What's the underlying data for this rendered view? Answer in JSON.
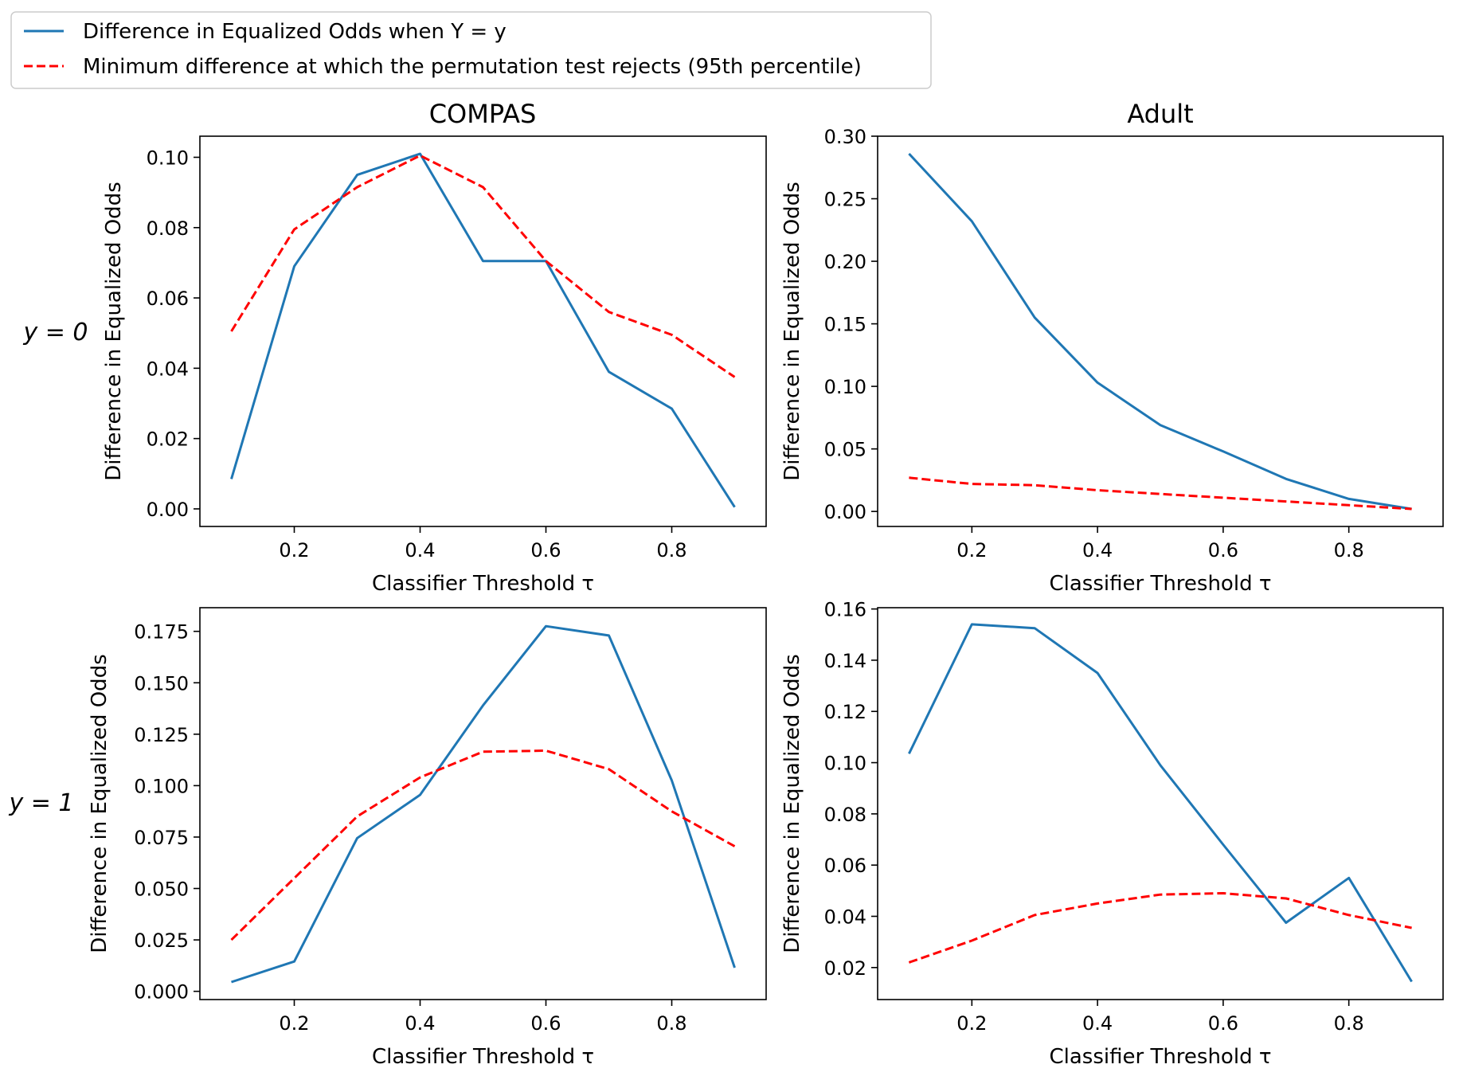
{
  "legend": {
    "items": [
      {
        "label": "Difference in Equalized Odds when Y = y",
        "color": "#1f77b4",
        "style": "solid"
      },
      {
        "label": "Minimum difference at which the permutation test rejects (95th percentile)",
        "color": "#ff0000",
        "style": "dashed"
      }
    ]
  },
  "columns": [
    "COMPAS",
    "Adult"
  ],
  "rows": [
    "y = 0",
    "y = 1"
  ],
  "chart_data": [
    {
      "type": "line",
      "title": "COMPAS",
      "row_label": "y = 0",
      "xlabel": "Classifier Threshold τ",
      "ylabel": "Difference in Equalized Odds",
      "xlim": [
        0.05,
        0.95
      ],
      "ylim": [
        -0.005,
        0.106
      ],
      "xticks": [
        0.2,
        0.4,
        0.6,
        0.8
      ],
      "xtick_labels": [
        "0.2",
        "0.4",
        "0.6",
        "0.8"
      ],
      "yticks": [
        0.0,
        0.02,
        0.04,
        0.06,
        0.08,
        0.1
      ],
      "ytick_labels": [
        "0.00",
        "0.02",
        "0.04",
        "0.06",
        "0.08",
        "0.10"
      ],
      "x": [
        0.1,
        0.2,
        0.3,
        0.4,
        0.5,
        0.6,
        0.7,
        0.8,
        0.9
      ],
      "series": [
        {
          "name": "Difference in Equalized Odds when Y = y",
          "color": "#1f77b4",
          "dash": false,
          "values": [
            0.0085,
            0.069,
            0.095,
            0.101,
            0.0705,
            0.0705,
            0.039,
            0.0285,
            0.0005
          ]
        },
        {
          "name": "Minimum difference at which the permutation test rejects (95th percentile)",
          "color": "#ff0000",
          "dash": true,
          "values": [
            0.0505,
            0.0795,
            0.0915,
            0.1005,
            0.0915,
            0.0705,
            0.056,
            0.0495,
            0.0375
          ]
        }
      ]
    },
    {
      "type": "line",
      "title": "Adult",
      "row_label": "y = 0",
      "xlabel": "Classifier Threshold τ",
      "ylabel": "Difference in Equalized Odds",
      "xlim": [
        0.05,
        0.95
      ],
      "ylim": [
        -0.012,
        0.3
      ],
      "xticks": [
        0.2,
        0.4,
        0.6,
        0.8
      ],
      "xtick_labels": [
        "0.2",
        "0.4",
        "0.6",
        "0.8"
      ],
      "yticks": [
        0.0,
        0.05,
        0.1,
        0.15,
        0.2,
        0.25,
        0.3
      ],
      "ytick_labels": [
        "0.00",
        "0.05",
        "0.10",
        "0.15",
        "0.20",
        "0.25",
        "0.30"
      ],
      "x": [
        0.1,
        0.2,
        0.3,
        0.4,
        0.5,
        0.6,
        0.7,
        0.8,
        0.9
      ],
      "series": [
        {
          "name": "Difference in Equalized Odds when Y = y",
          "color": "#1f77b4",
          "dash": false,
          "values": [
            0.286,
            0.232,
            0.155,
            0.103,
            0.069,
            0.048,
            0.026,
            0.01,
            0.002
          ]
        },
        {
          "name": "Minimum difference at which the permutation test rejects (95th percentile)",
          "color": "#ff0000",
          "dash": true,
          "values": [
            0.027,
            0.022,
            0.021,
            0.017,
            0.014,
            0.011,
            0.008,
            0.005,
            0.002
          ]
        }
      ]
    },
    {
      "type": "line",
      "title": "",
      "row_label": "y = 1",
      "xlabel": "Classifier Threshold τ",
      "ylabel": "Difference in Equalized Odds",
      "xlim": [
        0.05,
        0.95
      ],
      "ylim": [
        -0.004,
        0.1865
      ],
      "xticks": [
        0.2,
        0.4,
        0.6,
        0.8
      ],
      "xtick_labels": [
        "0.2",
        "0.4",
        "0.6",
        "0.8"
      ],
      "yticks": [
        0.0,
        0.025,
        0.05,
        0.075,
        0.1,
        0.125,
        0.15,
        0.175
      ],
      "ytick_labels": [
        "0.000",
        "0.025",
        "0.050",
        "0.075",
        "0.100",
        "0.125",
        "0.150",
        "0.175"
      ],
      "x": [
        0.1,
        0.2,
        0.3,
        0.4,
        0.5,
        0.6,
        0.7,
        0.8,
        0.9
      ],
      "series": [
        {
          "name": "Difference in Equalized Odds when Y = y",
          "color": "#1f77b4",
          "dash": false,
          "values": [
            0.0045,
            0.0145,
            0.0745,
            0.0955,
            0.139,
            0.1775,
            0.173,
            0.1025,
            0.0115
          ]
        },
        {
          "name": "Minimum difference at which the permutation test rejects (95th percentile)",
          "color": "#ff0000",
          "dash": true,
          "values": [
            0.025,
            0.055,
            0.085,
            0.104,
            0.1165,
            0.117,
            0.108,
            0.0875,
            0.0705
          ]
        }
      ]
    },
    {
      "type": "line",
      "title": "",
      "row_label": "y = 1",
      "xlabel": "Classifier Threshold τ",
      "ylabel": "Difference in Equalized Odds",
      "xlim": [
        0.05,
        0.95
      ],
      "ylim": [
        0.0075,
        0.1605
      ],
      "xticks": [
        0.2,
        0.4,
        0.6,
        0.8
      ],
      "xtick_labels": [
        "0.2",
        "0.4",
        "0.6",
        "0.8"
      ],
      "yticks": [
        0.02,
        0.04,
        0.06,
        0.08,
        0.1,
        0.12,
        0.14,
        0.16
      ],
      "ytick_labels": [
        "0.02",
        "0.04",
        "0.06",
        "0.08",
        "0.10",
        "0.12",
        "0.14",
        "0.16"
      ],
      "x": [
        0.1,
        0.2,
        0.3,
        0.4,
        0.5,
        0.6,
        0.7,
        0.8,
        0.9
      ],
      "series": [
        {
          "name": "Difference in Equalized Odds when Y = y",
          "color": "#1f77b4",
          "dash": false,
          "values": [
            0.1035,
            0.154,
            0.1525,
            0.135,
            0.099,
            0.068,
            0.0375,
            0.055,
            0.0145
          ]
        },
        {
          "name": "Minimum difference at which the permutation test rejects (95th percentile)",
          "color": "#ff0000",
          "dash": true,
          "values": [
            0.022,
            0.0305,
            0.0405,
            0.045,
            0.0485,
            0.049,
            0.047,
            0.0405,
            0.0355
          ]
        }
      ]
    }
  ]
}
